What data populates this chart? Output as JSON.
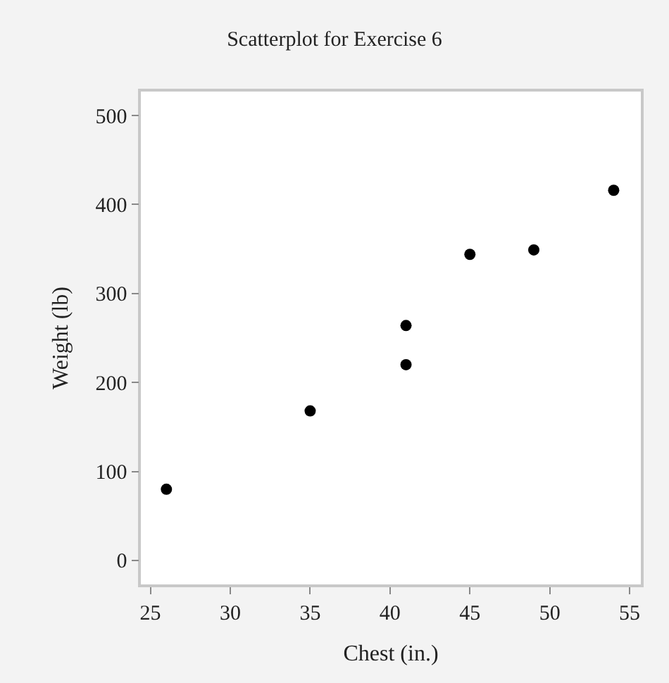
{
  "chart_data": {
    "type": "scatter",
    "title": "Scatterplot for Exercise 6",
    "xlabel": "Chest (in.)",
    "ylabel": "Weight (lb)",
    "x": [
      26,
      35,
      41,
      41,
      45,
      49,
      54
    ],
    "values": [
      80,
      168,
      220,
      264,
      344,
      349,
      416
    ],
    "color": "#000000",
    "marker": "circle",
    "xlim": [
      24.4,
      55.7
    ],
    "xticks": [
      25,
      30,
      35,
      40,
      45,
      50,
      55
    ],
    "ylim": [
      -27,
      527
    ],
    "yticks": [
      0,
      100,
      200,
      300,
      400,
      500
    ]
  }
}
